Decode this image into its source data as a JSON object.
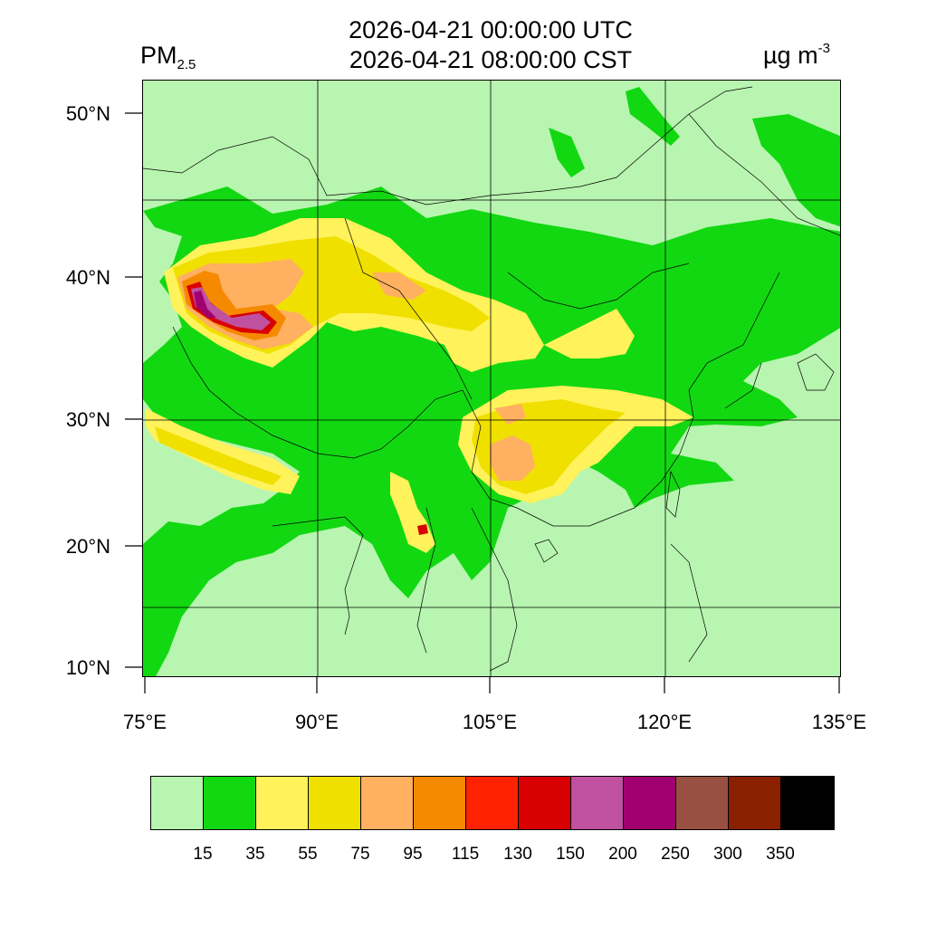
{
  "header": {
    "variable_main": "PM",
    "variable_sub": "2.5",
    "title_utc": "2026-04-21 00:00:00 UTC",
    "title_local": "2026-04-21 08:00:00 CST",
    "units_main": "µg m",
    "units_sup": "-3"
  },
  "axes": {
    "lat_ticks": [
      "50°N",
      "40°N",
      "30°N",
      "20°N",
      "10°N"
    ],
    "lon_ticks": [
      "75°E",
      "90°E",
      "105°E",
      "120°E",
      "135°E"
    ]
  },
  "colorbar": {
    "colors": [
      "#b8f5b0",
      "#12d812",
      "#fff25a",
      "#f0e000",
      "#ffb060",
      "#f58a00",
      "#ff2200",
      "#d80000",
      "#c050a0",
      "#a00070",
      "#9a5040",
      "#8a2000",
      "#000000"
    ],
    "labels": [
      "15",
      "35",
      "55",
      "75",
      "95",
      "115",
      "130",
      "150",
      "200",
      "250",
      "300",
      "350"
    ]
  },
  "map": {
    "background_level_color": "#b8f5b0",
    "grid_color": "#000000"
  }
}
